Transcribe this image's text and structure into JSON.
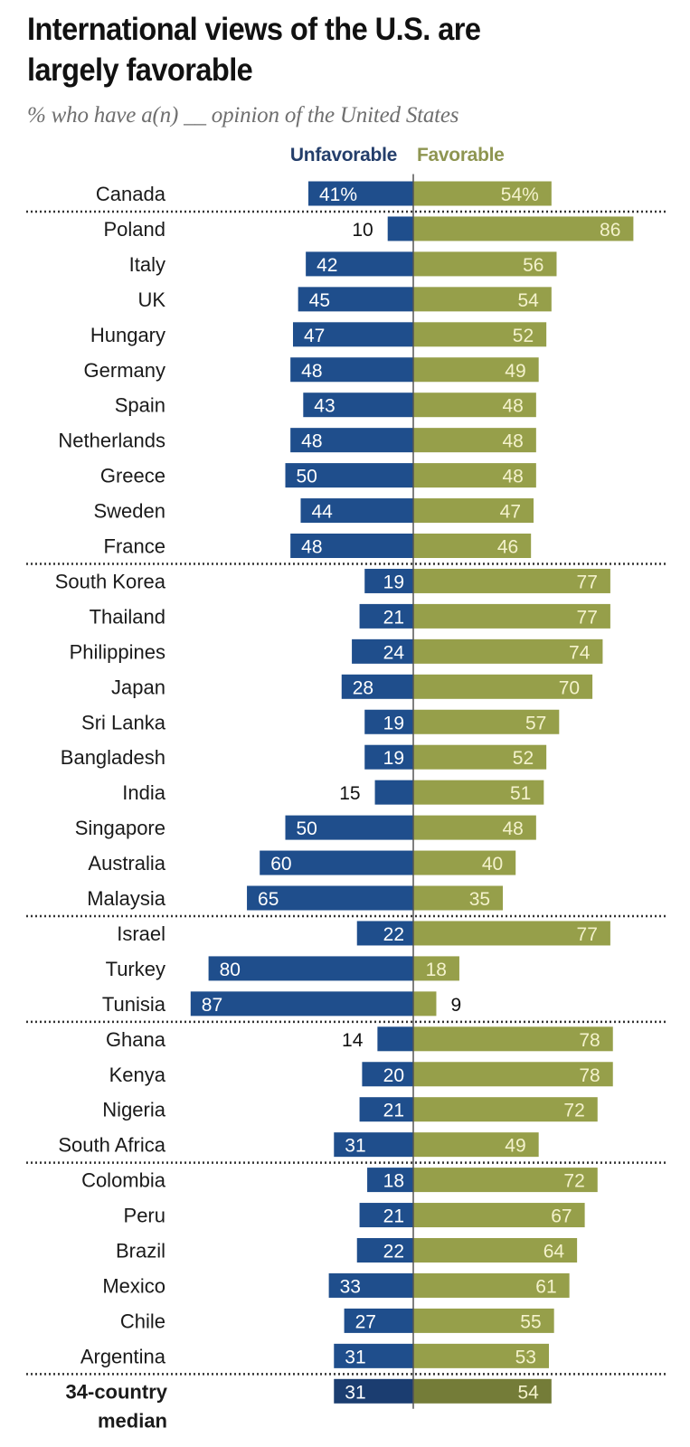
{
  "chart_data": {
    "type": "bar",
    "orientation": "horizontal-diverging",
    "title": "International views of the U.S. are largely favorable",
    "title_lines": [
      "International views of the U.S. are",
      "largely favorable"
    ],
    "subtitle": "% who have a(n) __ opinion of the United States",
    "xlabel": "",
    "ylabel": "",
    "xlim": [
      -100,
      100
    ],
    "grid": false,
    "legend": {
      "placement": "top-center",
      "entries": [
        "Unfavorable",
        "Favorable"
      ]
    },
    "colors": {
      "unfavorable": "#1f4e8c",
      "favorable": "#969f4a",
      "unfavorable_median": "#1b3d70",
      "favorable_median": "#747c38",
      "label_on_unfavorable": "#ffffff",
      "label_on_favorable": "#f4f2cc",
      "label_outside": "#111111",
      "center_line": "#555555",
      "separator": "#333333"
    },
    "series": [
      {
        "name": "Unfavorable",
        "values": [
          41,
          10,
          42,
          45,
          47,
          48,
          43,
          48,
          50,
          44,
          48,
          19,
          21,
          24,
          28,
          19,
          19,
          15,
          50,
          60,
          65,
          22,
          80,
          87,
          14,
          20,
          21,
          31,
          18,
          21,
          22,
          33,
          27,
          31,
          31
        ]
      },
      {
        "name": "Favorable",
        "values": [
          54,
          86,
          56,
          54,
          52,
          49,
          48,
          48,
          48,
          47,
          46,
          77,
          77,
          74,
          70,
          57,
          52,
          51,
          48,
          40,
          35,
          77,
          18,
          9,
          78,
          78,
          72,
          49,
          72,
          67,
          64,
          61,
          55,
          53,
          54
        ]
      }
    ],
    "categories": [
      "Canada",
      "Poland",
      "Italy",
      "UK",
      "Hungary",
      "Germany",
      "Spain",
      "Netherlands",
      "Greece",
      "Sweden",
      "France",
      "South Korea",
      "Thailand",
      "Philippines",
      "Japan",
      "Sri Lanka",
      "Bangladesh",
      "India",
      "Singapore",
      "Australia",
      "Malaysia",
      "Israel",
      "Turkey",
      "Tunisia",
      "Ghana",
      "Kenya",
      "Nigeria",
      "South Africa",
      "Colombia",
      "Peru",
      "Brazil",
      "Mexico",
      "Chile",
      "Argentina",
      "34-country median"
    ],
    "category_display_lines": {
      "34-country median": [
        "34-country",
        "median"
      ]
    },
    "first_row_labels": {
      "unfavorable": "41%",
      "favorable": "54%"
    },
    "separators_after": [
      "Canada",
      "France",
      "Malaysia",
      "Tunisia",
      "South Africa",
      "Argentina"
    ],
    "summary_category": "34-country median"
  }
}
